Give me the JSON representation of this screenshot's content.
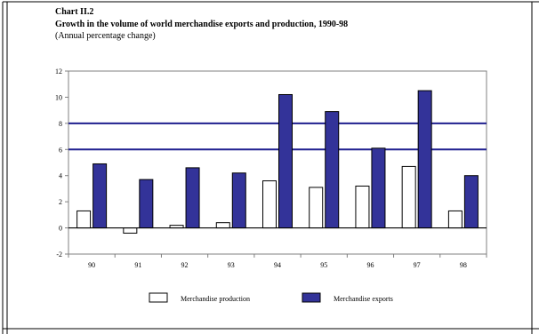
{
  "header": {
    "chart_number": "Chart II.2",
    "title": "Growth in the volume of world merchandise exports and production, 1990-98",
    "subtitle": "(Annual percentage change)"
  },
  "chart_data": {
    "type": "bar",
    "categories": [
      "90",
      "91",
      "92",
      "93",
      "94",
      "95",
      "96",
      "97",
      "98"
    ],
    "series": [
      {
        "name": "Merchandise production",
        "values": [
          1.3,
          -0.4,
          0.2,
          0.4,
          3.6,
          3.1,
          3.2,
          4.7,
          1.3
        ],
        "color": "#ffffff"
      },
      {
        "name": "Merchandise exports",
        "values": [
          4.9,
          3.7,
          4.6,
          4.2,
          10.2,
          8.9,
          6.1,
          10.5,
          4.0
        ],
        "color": "#333399"
      }
    ],
    "ylim": [
      -2,
      12
    ],
    "yticks": [
      "-2",
      "0",
      "2",
      "4",
      "6",
      "8",
      "10",
      "12"
    ],
    "highlighted_gridlines": [
      6,
      8
    ],
    "highlight_color": "#1f1f8f",
    "legend_position": "bottom-center"
  }
}
